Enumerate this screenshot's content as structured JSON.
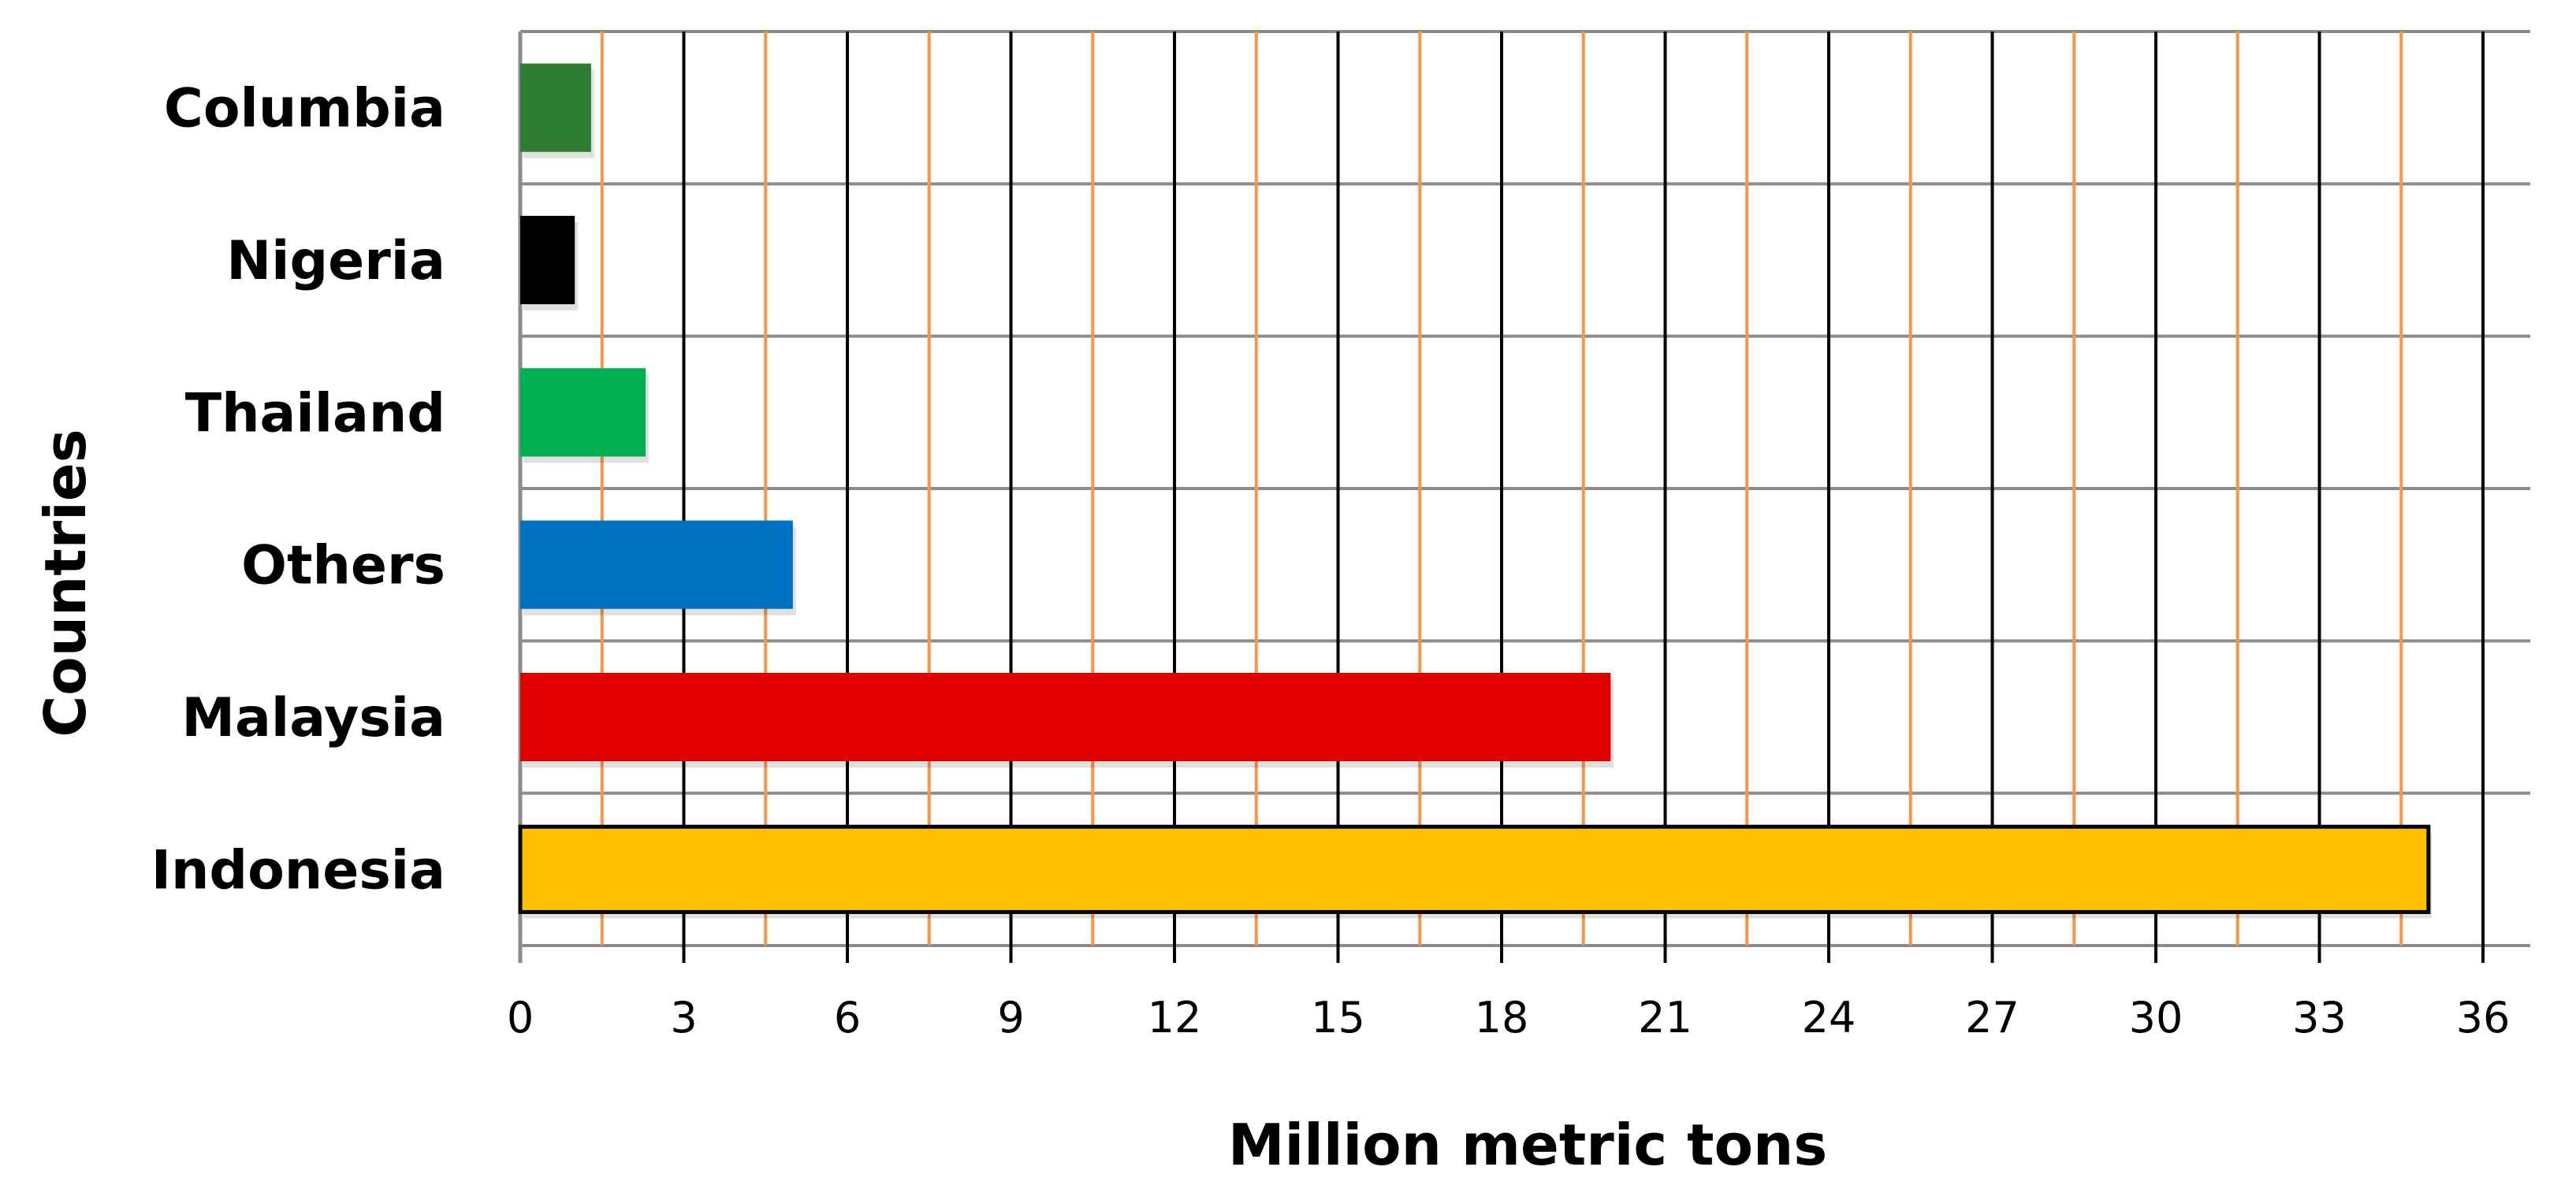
{
  "chart_data": {
    "type": "bar",
    "orientation": "horizontal",
    "title": "",
    "xlabel": "Million metric tons",
    "ylabel": "Countries",
    "xlim": [
      0,
      36
    ],
    "xticks": [
      0,
      3,
      6,
      9,
      12,
      15,
      18,
      21,
      24,
      27,
      30,
      33,
      36
    ],
    "grid": true,
    "categories": [
      "Columbia",
      "Nigeria",
      "Thailand",
      "Others",
      "Malaysia",
      "Indonesia"
    ],
    "values": [
      1.3,
      1.0,
      2.3,
      5.0,
      20.0,
      35.0
    ],
    "colors": [
      "#31859c",
      "#000000",
      "#00b050",
      "#0070c0",
      "#e00000",
      "#ffc000"
    ],
    "bar_colors_override": {
      "Columbia": "#2e7d32"
    },
    "minor_grid_color": "#f79646",
    "major_grid_color": "#000000"
  }
}
